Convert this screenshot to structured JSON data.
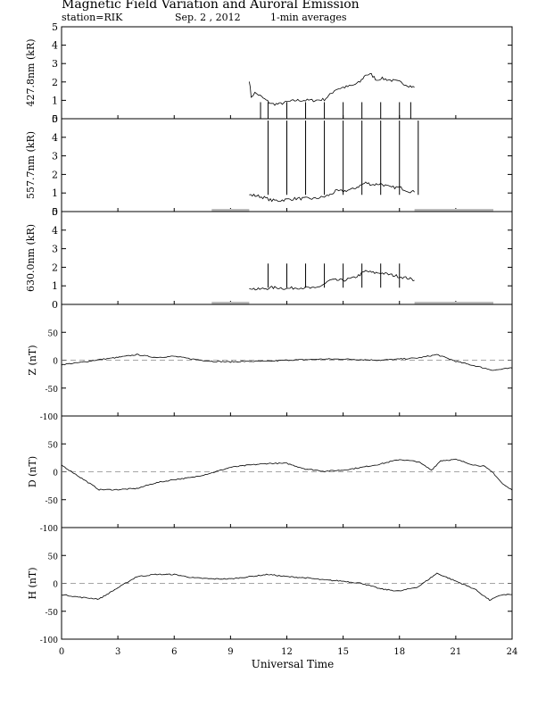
{
  "header": {
    "title": "Magnetic Field Variation and Auroral Emission",
    "station": "station=RIK",
    "date": "Sep. 2  , 2012",
    "averaging": "1-min averages"
  },
  "chart_data": [
    {
      "type": "line",
      "ylabel": "427.8nm (kR)",
      "ylim": [
        0,
        5
      ],
      "yticks": [
        0,
        1,
        2,
        3,
        4,
        5
      ],
      "color": "#000000",
      "series": [
        {
          "x": [
            10.0,
            10.1,
            10.3,
            10.5,
            10.9,
            11.2,
            11.6,
            12.0,
            12.5,
            13.0,
            13.5,
            14.0,
            14.3,
            14.6,
            15.0,
            15.5,
            15.9,
            16.2,
            16.5,
            16.8,
            17.0,
            17.5,
            18.0,
            18.5,
            18.8
          ],
          "y": [
            2.1,
            1.2,
            1.4,
            1.3,
            1.0,
            0.8,
            0.8,
            0.9,
            1.0,
            1.0,
            1.0,
            1.05,
            1.3,
            1.6,
            1.7,
            1.8,
            2.0,
            2.4,
            2.4,
            2.1,
            2.2,
            2.1,
            2.0,
            1.8,
            1.7
          ]
        }
      ],
      "spikes_x": [
        10.6,
        11.0,
        12.0,
        13.0,
        14.0,
        15.0,
        16.0,
        17.0,
        18.0,
        18.6
      ],
      "spikes_y": [
        0,
        0,
        0,
        0,
        0,
        0,
        0,
        0,
        0,
        0
      ]
    },
    {
      "type": "line",
      "ylabel": "557.7nm (kR)",
      "ylim": [
        0,
        5
      ],
      "yticks": [
        0,
        1,
        2,
        3,
        4,
        5
      ],
      "color": "#000000",
      "series": [
        {
          "x": [
            10.0,
            10.4,
            10.8,
            11.2,
            11.6,
            12.0,
            12.5,
            13.0,
            13.5,
            14.0,
            14.3,
            14.6,
            15.0,
            15.5,
            15.9,
            16.2,
            16.6,
            17.0,
            17.5,
            18.0,
            18.5,
            18.8
          ],
          "y": [
            0.9,
            0.85,
            0.75,
            0.6,
            0.6,
            0.65,
            0.7,
            0.7,
            0.7,
            0.8,
            0.9,
            1.1,
            1.1,
            1.2,
            1.4,
            1.55,
            1.45,
            1.5,
            1.3,
            1.3,
            1.1,
            1.05
          ]
        },
        {
          "name": "no data",
          "color": "#bbbbbb",
          "x": [
            8.0,
            10.0
          ],
          "y": [
            0.07,
            0.07
          ]
        },
        {
          "name": "no data",
          "color": "#bbbbbb",
          "x": [
            18.8,
            23.0
          ],
          "y": [
            0.07,
            0.07
          ]
        }
      ],
      "spikes_x": [
        11.0,
        12.0,
        13.0,
        14.0,
        15.0,
        16.0,
        17.0,
        18.0,
        19.0
      ],
      "spikes_y": [
        4.9,
        4.9,
        4.9,
        4.9,
        4.9,
        4.9,
        4.9,
        4.9,
        4.9
      ]
    },
    {
      "type": "line",
      "ylabel": "630.0nm (kR)",
      "ylim": [
        0,
        5
      ],
      "yticks": [
        0,
        1,
        2,
        3,
        4,
        5
      ],
      "color": "#000000",
      "series": [
        {
          "x": [
            10.0,
            10.4,
            10.8,
            11.2,
            11.6,
            12.0,
            12.5,
            13.0,
            13.5,
            14.0,
            14.3,
            14.6,
            15.0,
            15.5,
            15.9,
            16.2,
            16.6,
            17.0,
            17.5,
            18.0,
            18.5,
            18.8
          ],
          "y": [
            0.9,
            0.8,
            0.85,
            0.9,
            0.9,
            0.85,
            0.9,
            0.9,
            0.85,
            1.1,
            1.3,
            1.3,
            1.3,
            1.4,
            1.6,
            1.8,
            1.7,
            1.7,
            1.6,
            1.5,
            1.4,
            1.3
          ]
        },
        {
          "name": "no data",
          "color": "#bbbbbb",
          "x": [
            8.0,
            10.0
          ],
          "y": [
            0.07,
            0.07
          ]
        },
        {
          "name": "no data",
          "color": "#bbbbbb",
          "x": [
            18.8,
            23.0
          ],
          "y": [
            0.07,
            0.07
          ]
        }
      ],
      "spikes_x": [
        11.0,
        12.0,
        13.0,
        14.0,
        15.0,
        16.0,
        17.0,
        18.0
      ],
      "spikes_y": [
        2.2,
        2.2,
        2.2,
        2.2,
        2.2,
        2.2,
        2.2,
        2.2
      ]
    },
    {
      "type": "line",
      "ylabel": "Z (nT)",
      "ylim": [
        -100,
        100
      ],
      "yticks": [
        -100,
        -50,
        0,
        50
      ],
      "reference_line": 0,
      "color": "#000000",
      "series": [
        {
          "x": [
            0,
            1,
            2,
            3,
            4,
            5,
            6,
            7,
            8,
            9,
            10,
            11,
            12,
            13,
            14,
            15,
            16,
            17,
            18,
            19,
            20,
            21,
            22,
            23,
            24
          ],
          "y": [
            -8,
            -4,
            1,
            5,
            10,
            5,
            7,
            2,
            -2,
            -3,
            -2,
            -2,
            0,
            1,
            2,
            2,
            1,
            0,
            2,
            4,
            10,
            -2,
            -10,
            -18,
            -14
          ]
        }
      ]
    },
    {
      "type": "line",
      "ylabel": "D (nT)",
      "ylim": [
        -100,
        100
      ],
      "yticks": [
        -100,
        -50,
        0,
        50
      ],
      "reference_line": 0,
      "color": "#000000",
      "series": [
        {
          "x": [
            0,
            1,
            2,
            3,
            4,
            5,
            6,
            7,
            8,
            9,
            10,
            11,
            12,
            13,
            14,
            15,
            16,
            17,
            18,
            19,
            19.7,
            20.2,
            21,
            22,
            22.5,
            23,
            23.5,
            24
          ],
          "y": [
            12,
            -10,
            -32,
            -32,
            -30,
            -20,
            -14,
            -10,
            -2,
            8,
            12,
            15,
            15,
            5,
            1,
            3,
            8,
            14,
            22,
            18,
            3,
            20,
            22,
            12,
            10,
            -2,
            -22,
            -33
          ]
        }
      ]
    },
    {
      "type": "line",
      "ylabel": "H (nT)",
      "ylim": [
        -100,
        100
      ],
      "yticks": [
        -100,
        -50,
        0,
        50
      ],
      "reference_line": 0,
      "color": "#000000",
      "series": [
        {
          "x": [
            0,
            1,
            2,
            3,
            4,
            5,
            6,
            7,
            8,
            9,
            10,
            11,
            12,
            13,
            14,
            15,
            16,
            17,
            18,
            19,
            20,
            21,
            22,
            22.8,
            23.5,
            24
          ],
          "y": [
            -20,
            -25,
            -28,
            -8,
            12,
            16,
            16,
            10,
            8,
            8,
            12,
            16,
            12,
            10,
            6,
            4,
            0,
            -10,
            -14,
            -6,
            18,
            4,
            -10,
            -30,
            -20,
            -20
          ]
        }
      ]
    }
  ],
  "x_axis": {
    "label": "Universal Time",
    "xlim": [
      0,
      24
    ],
    "ticks": [
      0,
      3,
      6,
      9,
      12,
      15,
      18,
      21,
      24
    ]
  }
}
